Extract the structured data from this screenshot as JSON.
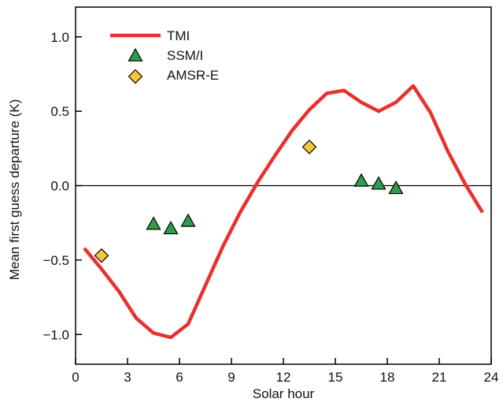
{
  "chart_data": {
    "type": "line",
    "title": "",
    "xlabel": "Solar hour",
    "ylabel": "Mean first guess departure (K)",
    "xlim": [
      0,
      24
    ],
    "ylim": [
      -1.2,
      1.2
    ],
    "xticks": [
      0,
      3,
      6,
      9,
      12,
      15,
      18,
      21,
      24
    ],
    "yticks": [
      -1.0,
      -0.5,
      0.0,
      0.5,
      1.0
    ],
    "xtick_labels": [
      "0",
      "3",
      "6",
      "9",
      "12",
      "15",
      "18",
      "21",
      "24"
    ],
    "ytick_labels": [
      "−1.0",
      "−0.5",
      "0.0",
      "0.5",
      "1.0"
    ],
    "zero_line": true,
    "grid": false,
    "legend_position": "top-left",
    "series": [
      {
        "name": "TMI",
        "kind": "line",
        "color": "#e8312f",
        "x": [
          0.5,
          1.5,
          2.5,
          3.5,
          4.5,
          5.5,
          6.5,
          7.5,
          8.5,
          9.5,
          10.5,
          11.5,
          12.5,
          13.5,
          14.5,
          15.5,
          16.5,
          17.5,
          18.5,
          19.5,
          20.5,
          21.5,
          22.5,
          23.5
        ],
        "y": [
          -0.42,
          -0.56,
          -0.71,
          -0.89,
          -0.99,
          -1.02,
          -0.93,
          -0.67,
          -0.41,
          -0.18,
          0.02,
          0.2,
          0.37,
          0.51,
          0.62,
          0.64,
          0.56,
          0.5,
          0.56,
          0.67,
          0.49,
          0.23,
          0.01,
          -0.18
        ]
      },
      {
        "name": "SSM/I",
        "kind": "scatter",
        "marker": "triangle",
        "color": "#2e9e4a",
        "x": [
          4.5,
          5.5,
          6.5,
          16.5,
          17.5,
          18.5
        ],
        "y": [
          -0.26,
          -0.29,
          -0.24,
          0.03,
          0.01,
          -0.02
        ]
      },
      {
        "name": "AMSR-E",
        "kind": "scatter",
        "marker": "diamond",
        "color": "#f6c53a",
        "x": [
          1.5,
          13.5
        ],
        "y": [
          -0.47,
          0.26
        ]
      }
    ]
  }
}
